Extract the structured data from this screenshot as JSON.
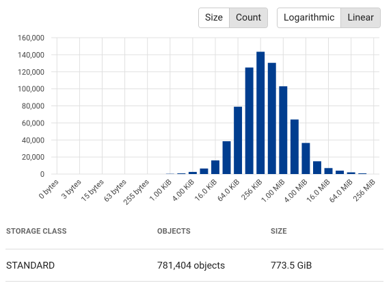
{
  "controls": {
    "metric": [
      "Size",
      "Count"
    ],
    "scale": [
      "Logarithmic",
      "Linear"
    ]
  },
  "chart_data": {
    "type": "bar",
    "categories": [
      "0 bytes",
      null,
      "3 bytes",
      null,
      "15 bytes",
      null,
      "63 bytes",
      null,
      "255 bytes",
      null,
      "1.00 KiB",
      null,
      "4.00 KiB",
      null,
      "16.0 KiB",
      null,
      "64.0 KiB",
      null,
      "256 KiB",
      null,
      "1.00 MiB",
      null,
      "4.00 MiB",
      null,
      "16.0 MiB",
      null,
      "64.0 MiB",
      null,
      "256 MiB"
    ],
    "values": [
      0,
      0,
      0,
      0,
      0,
      0,
      0,
      0,
      0,
      0,
      300,
      800,
      2500,
      6500,
      16000,
      38500,
      79000,
      125000,
      143500,
      130500,
      103000,
      64000,
      36500,
      15000,
      7000,
      4000,
      2000,
      800,
      0
    ],
    "color": "#003d8f",
    "ylim": [
      0,
      160000
    ],
    "yticks": [
      {
        "value": 0,
        "label": "0"
      },
      {
        "value": 20000,
        "label": "20,000"
      },
      {
        "value": 40000,
        "label": "40,000"
      },
      {
        "value": 60000,
        "label": "60,000"
      },
      {
        "value": 80000,
        "label": "80,000"
      },
      {
        "value": 100000,
        "label": "100,000"
      },
      {
        "value": 120000,
        "label": "120,000"
      },
      {
        "value": 140000,
        "label": "140,000"
      },
      {
        "value": 160000,
        "label": "160,000"
      }
    ],
    "grid": true
  },
  "table": {
    "header": [
      "STORAGE CLASS",
      "OBJECTS",
      "SIZE"
    ],
    "rows": [
      [
        "STANDARD",
        "781,404 objects",
        "773.5 GiB"
      ]
    ]
  }
}
